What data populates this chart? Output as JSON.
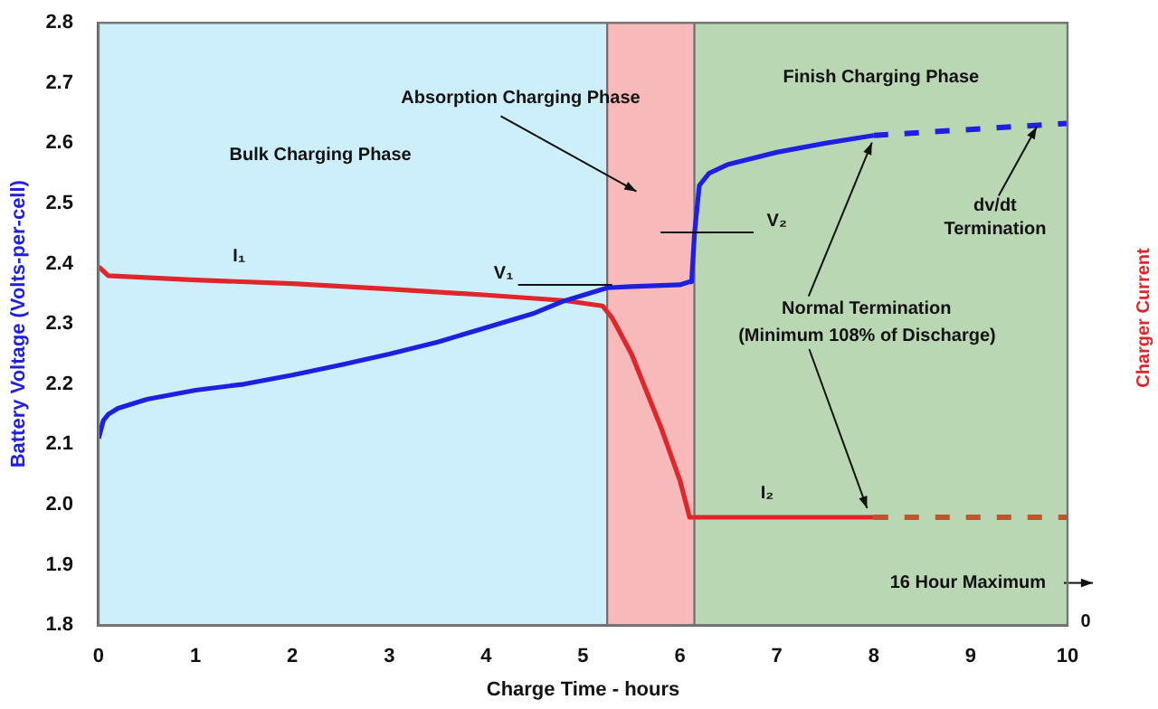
{
  "chart_data": {
    "type": "line",
    "xlabel": "Charge Time - hours",
    "ylabel": "Battery Voltage (Volts-per-cell)",
    "y2label": "Charger Current",
    "xlim": [
      0,
      10
    ],
    "xticks": [
      0,
      1,
      2,
      3,
      4,
      5,
      6,
      7,
      8,
      9,
      10
    ],
    "ylim": [
      1.8,
      2.8
    ],
    "yticks": [
      1.8,
      1.9,
      {
        "value": 2,
        "label": "2.0"
      },
      2.1,
      2.2,
      2.3,
      2.4,
      2.5,
      2.6,
      2.7,
      2.8
    ],
    "grid": false,
    "legend": false,
    "marker": "none",
    "series": [
      {
        "color": "#1f1fe0",
        "x": [
          0,
          0.05,
          0.1,
          0.2,
          0.5,
          1,
          1.5,
          2,
          2.5,
          3,
          3.5,
          4,
          4.5,
          4.8,
          5.25,
          5.5,
          6,
          6.1,
          6.12,
          6.15,
          6.2,
          6.3,
          6.5,
          7,
          7.5,
          8
        ],
        "values": [
          2.11,
          2.14,
          2.15,
          2.16,
          2.175,
          2.19,
          2.2,
          2.215,
          2.232,
          2.25,
          2.27,
          2.294,
          2.318,
          2.338,
          2.36,
          2.362,
          2.365,
          2.37,
          2.37,
          2.45,
          2.53,
          2.55,
          2.565,
          2.585,
          2.6,
          2.613
        ],
        "line_style": "solid"
      },
      {
        "color": "#1f1fe0",
        "x": [
          8,
          10
        ],
        "values": [
          2.613,
          2.633
        ],
        "line_style": "dashed"
      },
      {
        "color": "#e0262a",
        "x": [
          0,
          0.1,
          1,
          2,
          3,
          4,
          4.8,
          5.2,
          5.3,
          5.5,
          5.8,
          6,
          6.1,
          8
        ],
        "values": [
          2.395,
          2.38,
          2.373,
          2.367,
          2.358,
          2.348,
          2.339,
          2.33,
          2.31,
          2.25,
          2.13,
          2.04,
          1.979,
          1.979
        ],
        "line_style": "solid"
      },
      {
        "color": "#c0542a",
        "x": [
          8,
          10
        ],
        "values": [
          1.979,
          1.979
        ],
        "line_style": "dashed"
      }
    ],
    "bands": [
      {
        "axis": "x",
        "from": 0,
        "to": 5.25,
        "color": "#cdeffb",
        "label": "Bulk Charging Phase"
      },
      {
        "axis": "x",
        "from": 5.25,
        "to": 6.15,
        "color": "#f7b9b9",
        "label": "Absorption Charging Phase"
      },
      {
        "axis": "x",
        "from": 6.15,
        "to": 10,
        "color": "#b9d7b3",
        "label": "Finish Charging Phase"
      }
    ],
    "annotations": [
      {
        "text": "I₁",
        "x": 1.45,
        "y": 2.373
      },
      {
        "text": "V₁",
        "x": 5.3,
        "y": 2.365
      },
      "V₂",
      {
        "text": "I₂",
        "x": 6.9,
        "y": 1.979
      },
      {
        "text": "Normal Termination",
        "x": 8,
        "y": 2.613
      },
      {
        "text": "(Minimum 108% of Discharge)",
        "x": 7.95,
        "y": 1.979
      },
      {
        "text": "dv/dt\nTermination",
        "x": 9.7,
        "y": 2.633
      },
      "16 Hour Maximum",
      "0"
    ]
  }
}
